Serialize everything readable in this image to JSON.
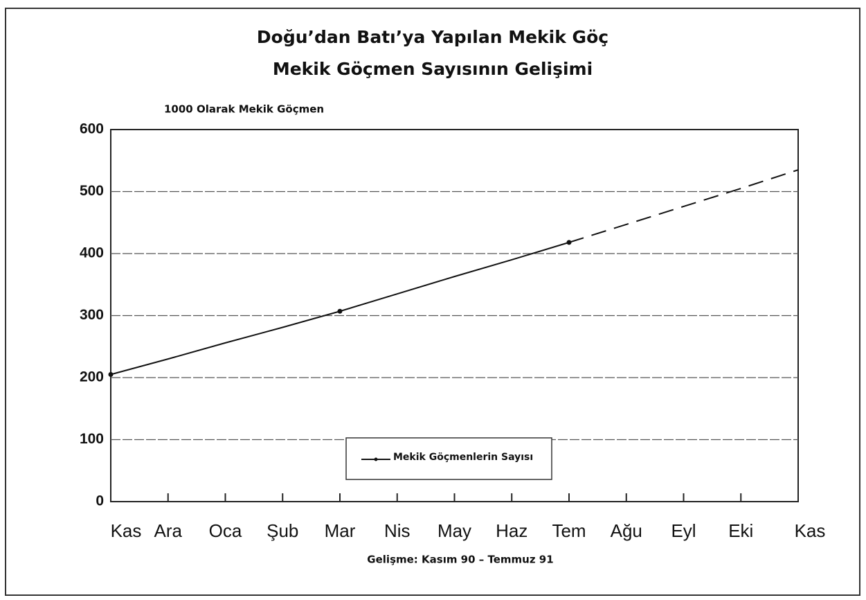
{
  "chart_data": {
    "type": "line",
    "title": [
      "Doğu’dan Batı’ya Yapılan Mekik Göç",
      "Mekik Göçmen Sayısının Gelişimi"
    ],
    "ylabel": "1000 Olarak Mekik Göçmen",
    "xlabel": "Gelişme: Kasım 90 – Temmuz 91",
    "categories": [
      "Kas",
      "Ara",
      "Oca",
      "Şub",
      "Mar",
      "Nis",
      "May",
      "Haz",
      "Tem",
      "Ağu",
      "Eyl",
      "Eki",
      "Kas"
    ],
    "series": [
      {
        "name": "Mekik Göçmenlerin Sayısı",
        "color": "#111111",
        "values": [
          205,
          230,
          256,
          281,
          307,
          335,
          363,
          390,
          418,
          null,
          null,
          null,
          null
        ],
        "projection": [
          null,
          null,
          null,
          null,
          null,
          null,
          null,
          null,
          418,
          447,
          476,
          505,
          535
        ],
        "marker_indices": [
          0,
          4,
          8
        ]
      }
    ],
    "ylim": [
      0,
      600
    ],
    "yticks": [
      0,
      100,
      200,
      300,
      400,
      500,
      600
    ],
    "grid": true
  }
}
